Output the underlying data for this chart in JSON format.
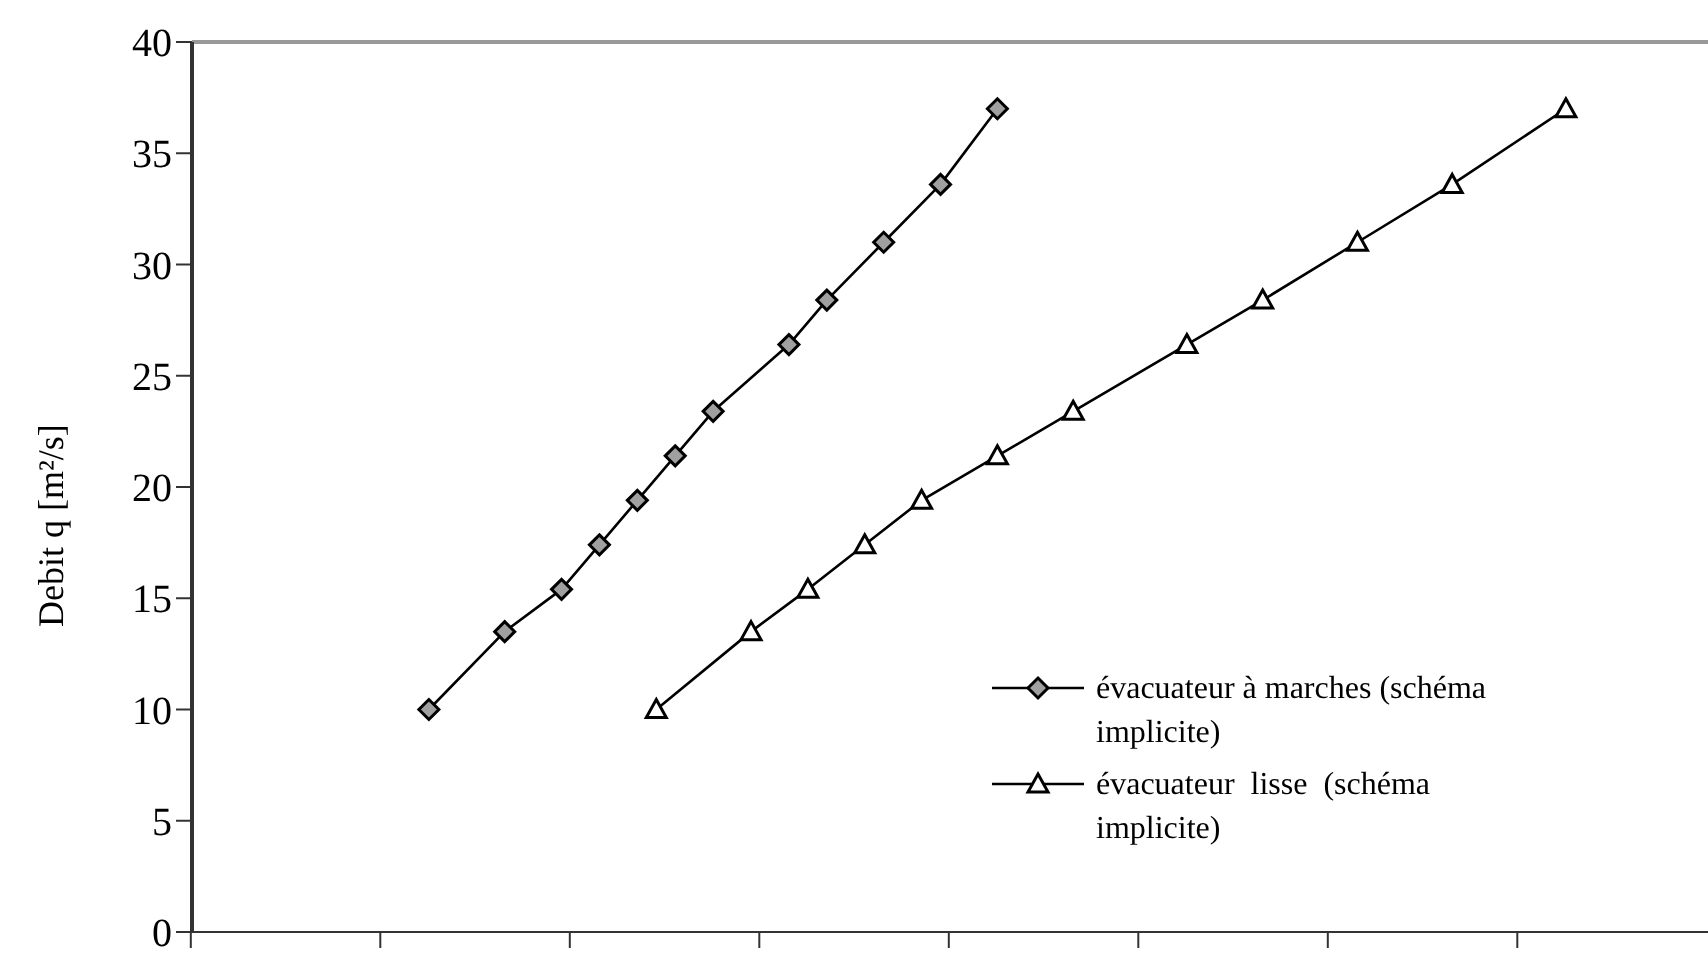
{
  "chart_data": {
    "type": "line",
    "ylabel": "Debit q  [m²/s]",
    "categories": [
      null,
      null,
      null,
      null,
      null,
      null,
      null,
      null,
      null,
      null,
      null,
      null,
      null,
      null,
      null,
      null,
      null,
      null,
      null,
      null,
      null,
      null,
      null,
      null,
      null,
      null,
      null,
      null,
      null,
      null,
      null,
      null,
      null,
      null,
      null,
      null,
      null,
      null,
      null,
      null,
      null,
      null,
      null,
      null,
      null,
      null,
      null,
      null,
      null,
      null,
      null,
      null,
      null,
      null,
      null,
      null,
      null,
      null,
      null,
      null,
      null,
      null,
      null,
      null,
      null,
      null,
      null,
      null,
      null,
      null,
      null,
      null,
      null,
      null,
      null,
      null,
      null,
      null,
      null,
      null
    ],
    "ylim": [
      0,
      40
    ],
    "yticks": [
      0,
      5,
      10,
      15,
      20,
      25,
      30,
      35,
      40
    ],
    "tick_labels": "y",
    "legend": "bottom right",
    "line_style": "solid",
    "series": [
      {
        "name": "évacuateur à marches (schéma  implicite)",
        "color": "#000000",
        "marker": "diamond",
        "values": [
          null,
          null,
          null,
          null,
          null,
          null,
          null,
          null,
          null,
          null,
          null,
          null,
          10,
          null,
          null,
          null,
          13.5,
          null,
          null,
          15.4,
          null,
          17.4,
          null,
          19.4,
          null,
          21.4,
          null,
          23.4,
          null,
          null,
          null,
          26.4,
          null,
          28.4,
          null,
          null,
          31,
          null,
          null,
          33.6,
          null,
          null,
          37,
          null,
          null,
          null,
          null,
          null,
          null,
          null,
          null,
          null,
          null,
          null,
          null,
          null,
          null,
          null,
          null,
          null,
          null,
          null,
          null,
          null,
          null,
          null,
          null,
          null,
          null,
          null,
          null,
          null,
          null,
          null,
          null,
          null,
          null,
          null,
          null,
          null
        ]
      },
      {
        "name": "évacuateur  lisse  (schéma implicite)",
        "color": "#000000",
        "marker": "triangle",
        "values": [
          null,
          null,
          null,
          null,
          null,
          null,
          null,
          null,
          null,
          null,
          null,
          null,
          null,
          null,
          null,
          null,
          null,
          null,
          null,
          null,
          null,
          null,
          null,
          null,
          10,
          null,
          null,
          null,
          null,
          13.5,
          null,
          null,
          15.4,
          null,
          null,
          17.4,
          null,
          null,
          19.4,
          null,
          null,
          null,
          21.4,
          null,
          null,
          null,
          23.4,
          null,
          null,
          null,
          null,
          null,
          26.4,
          null,
          null,
          null,
          28.4,
          null,
          null,
          null,
          null,
          31,
          null,
          null,
          null,
          null,
          33.6,
          null,
          null,
          null,
          null,
          null,
          37,
          null,
          null,
          null,
          null,
          null,
          null,
          null
        ]
      }
    ]
  }
}
